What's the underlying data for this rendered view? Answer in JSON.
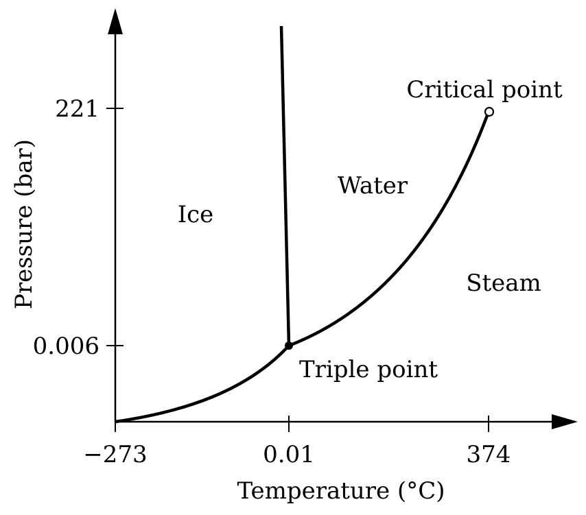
{
  "chart_data": {
    "type": "line",
    "title": "",
    "xlabel": "Temperature (°C)",
    "ylabel": "Pressure (bar)",
    "x_ticks": [
      "−273",
      "0.01",
      "374"
    ],
    "y_ticks": [
      "0.006",
      "221"
    ],
    "regions": [
      "Ice",
      "Water",
      "Steam"
    ],
    "points": [
      {
        "label": "Triple point",
        "x": 0.01,
        "y": 0.006,
        "marker": "filled"
      },
      {
        "label": "Critical point",
        "x": 374,
        "y": 221,
        "marker": "hollow"
      }
    ],
    "series": [
      {
        "curve": "sublimation",
        "x": [
          -273,
          0.01
        ],
        "y": [
          0,
          0.006
        ]
      },
      {
        "curve": "melting",
        "x": [
          0.01,
          -6
        ],
        "y": [
          0.006,
          300
        ]
      },
      {
        "curve": "vaporization",
        "x": [
          0.01,
          374
        ],
        "y": [
          0.006,
          221
        ]
      }
    ],
    "grid": false,
    "legend": "none",
    "colors": {
      "line": "#000000",
      "background": "#ffffff"
    }
  }
}
